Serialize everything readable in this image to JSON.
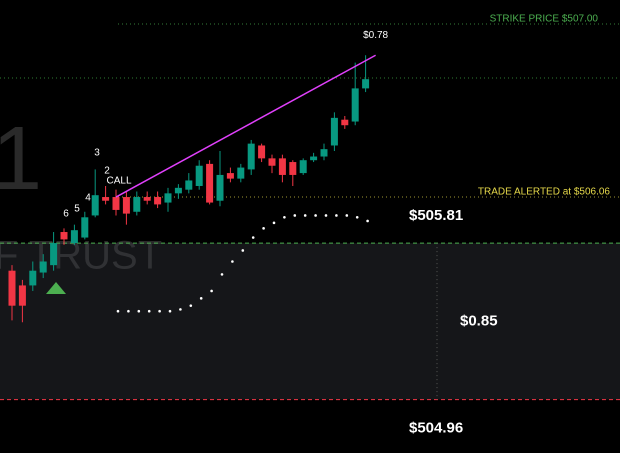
{
  "chart_data": {
    "type": "candlestick",
    "ylim": [
      504.67,
      507.13
    ],
    "up_color": "#089981",
    "down_color": "#f23645",
    "open": [
      505.66,
      505.58,
      505.58,
      505.65,
      505.69,
      505.87,
      505.81,
      505.84,
      505.96,
      506.06,
      506.06,
      506.06,
      505.98,
      506.06,
      506.06,
      506.03,
      506.08,
      506.1,
      506.12,
      506.24,
      506.04,
      506.19,
      506.16,
      506.21,
      506.34,
      506.27,
      506.27,
      506.25,
      506.19,
      506.26,
      506.28,
      506.34,
      506.48,
      506.47,
      506.65
    ],
    "high": [
      505.69,
      505.61,
      505.71,
      505.75,
      505.87,
      505.89,
      505.91,
      505.98,
      506.21,
      506.12,
      506.1,
      506.09,
      506.09,
      506.09,
      506.09,
      506.11,
      506.13,
      506.19,
      506.26,
      506.26,
      506.31,
      506.22,
      506.24,
      506.37,
      506.35,
      506.29,
      506.29,
      506.26,
      506.27,
      506.3,
      506.35,
      506.52,
      506.5,
      506.79,
      506.83
    ],
    "low": [
      505.39,
      505.38,
      505.55,
      505.62,
      505.66,
      505.8,
      505.8,
      505.83,
      505.95,
      506.02,
      505.96,
      505.91,
      505.96,
      506.02,
      506.0,
      505.98,
      506.05,
      506.08,
      506.1,
      506.02,
      506.01,
      506.14,
      506.14,
      506.18,
      506.25,
      506.19,
      506.14,
      506.12,
      506.18,
      506.25,
      506.26,
      506.31,
      506.43,
      506.45,
      506.63
    ],
    "close": [
      505.47,
      505.47,
      505.66,
      505.71,
      505.81,
      505.83,
      505.88,
      505.95,
      506.07,
      506.04,
      505.99,
      505.97,
      506.06,
      506.04,
      506.02,
      506.08,
      506.11,
      506.15,
      506.23,
      506.03,
      506.18,
      506.16,
      506.22,
      506.35,
      506.27,
      506.23,
      506.18,
      506.18,
      506.26,
      506.28,
      506.32,
      506.49,
      506.45,
      506.65,
      506.7
    ],
    "dots": {
      "color": "#ffffff",
      "values": [
        null,
        null,
        null,
        null,
        null,
        null,
        null,
        null,
        null,
        null,
        505.44,
        505.44,
        505.44,
        505.44,
        505.44,
        505.44,
        505.45,
        505.47,
        505.51,
        505.55,
        505.64,
        505.71,
        505.77,
        505.84,
        505.89,
        505.92,
        505.95,
        505.96,
        505.96,
        505.96,
        505.96,
        505.96,
        505.96,
        505.95,
        505.93
      ]
    },
    "levels": [
      {
        "label": "STRIKE PRICE $507.00",
        "value": 507.0,
        "color": "#4caf50"
      },
      {
        "label": "TRADE ALERTED at $506.06",
        "value": 506.06,
        "color": "#e6d94a"
      }
    ],
    "trendline": {
      "values": [
        506.06,
        506.83
      ],
      "label": "$0.78",
      "color": "#e040fb"
    },
    "range_box": {
      "top": 505.81,
      "bottom": 504.96,
      "top_label": "$505.81",
      "bottom_label": "$504.96",
      "size_label": "$0.85"
    },
    "annotations": [
      "3",
      "2",
      "CALL",
      "4",
      "5",
      "6"
    ],
    "watermark": [
      "1",
      "F TRUST"
    ]
  }
}
